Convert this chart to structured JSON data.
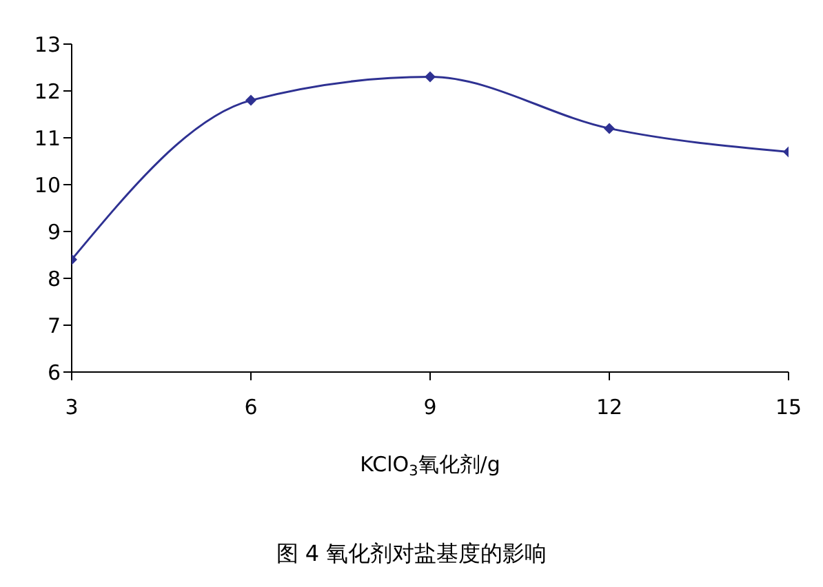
{
  "chart_data": {
    "type": "line",
    "title": "图 4 氧化剂对盐基度的影响",
    "xlabel": "KClO$_{3}$氧化剂/g",
    "x": [
      3,
      6,
      9,
      12,
      15
    ],
    "series": [
      {
        "color": "#2e3192",
        "values": [
          8.4,
          11.8,
          12.3,
          11.2,
          10.7
        ]
      }
    ],
    "xlim": [
      3,
      15
    ],
    "xticks": [
      3,
      6,
      9,
      12,
      15
    ],
    "ylim": [
      6,
      13
    ],
    "yticks": [
      6,
      7,
      8,
      9,
      10,
      11,
      12,
      13
    ],
    "marker": "diamond"
  }
}
